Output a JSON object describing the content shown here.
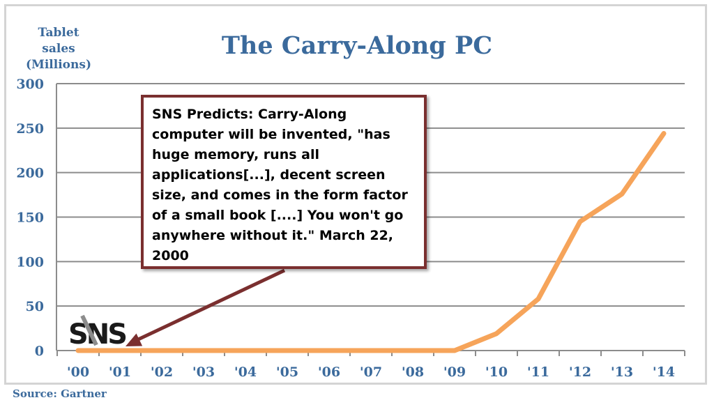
{
  "chart_data": {
    "type": "line",
    "title": "The Carry-Along PC",
    "ylabel_lines": [
      "Tablet",
      "sales",
      "(Millions)"
    ],
    "categories": [
      "'00",
      "'01",
      "'02",
      "'03",
      "'04",
      "'05",
      "'06",
      "'07",
      "'08",
      "'09",
      "'10",
      "'11",
      "'12",
      "'13",
      "'14"
    ],
    "series": [
      {
        "values": [
          0,
          0,
          0,
          0,
          0,
          0,
          0,
          0,
          0,
          0,
          19,
          58,
          145,
          176,
          244
        ]
      }
    ],
    "ylim": [
      0,
      300
    ],
    "yticks": [
      0,
      50,
      100,
      150,
      200,
      250,
      300
    ],
    "grid": true,
    "annotation": {
      "text": "SNS Predicts: Carry-Along computer will be invented, \"has huge memory, runs all applications[...], decent screen size, and comes in the form factor of a small book [....] You won't go anywhere without it.\" March 22, 2000",
      "points_to": "'01"
    }
  },
  "logo_text": "SNS",
  "source": "Source: Gartner",
  "colors": {
    "line": "#f6a45a",
    "text": "#3b6a9c",
    "grid": "#8c8c8c",
    "callout_border": "#7a2f2f",
    "arrow": "#7a2f2f"
  }
}
